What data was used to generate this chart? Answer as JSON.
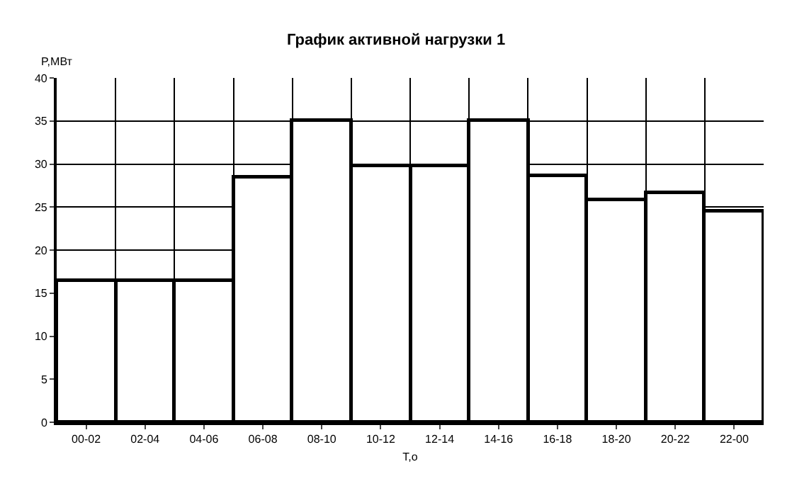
{
  "chart_data": {
    "type": "bar",
    "title": "График активной нагрузки 1",
    "xlabel": "T,o",
    "ylabel": "P,МВт",
    "categories": [
      "00-02",
      "02-04",
      "04-06",
      "06-08",
      "08-10",
      "10-12",
      "12-14",
      "14-16",
      "16-18",
      "18-20",
      "20-22",
      "22-00"
    ],
    "values": [
      16.4,
      16.4,
      16.4,
      28.4,
      35,
      29.8,
      29.8,
      35,
      28.7,
      25.9,
      26.7,
      24.6
    ],
    "color": "#ffffff",
    "ylim": [
      0,
      40
    ],
    "yticks": [
      0,
      5,
      10,
      15,
      20,
      25,
      30,
      35,
      40
    ],
    "grid": true,
    "legend": false
  }
}
